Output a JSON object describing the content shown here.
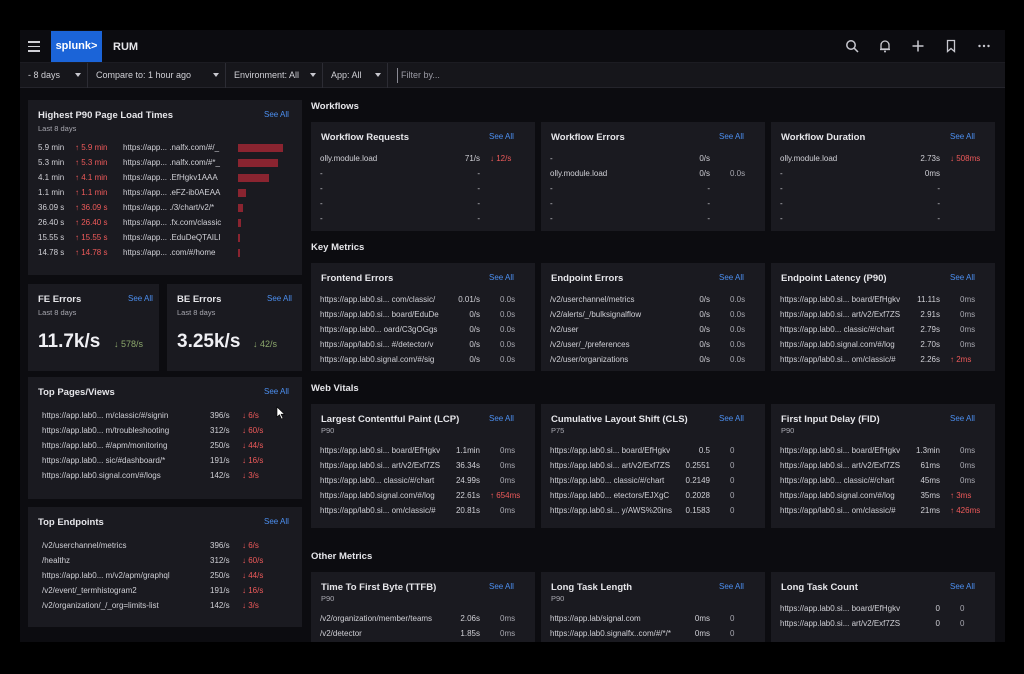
{
  "app": {
    "logo": "splunk>",
    "title": "RUM"
  },
  "toolbar_icons": [
    "search-icon",
    "bell-icon",
    "plus-icon",
    "bookmark-icon",
    "more-icon"
  ],
  "filters": {
    "time": "- 8 days",
    "compare": "Compare to: 1 hour ago",
    "environment": "Environment: All",
    "app": "App: All",
    "filter_placeholder": "Filter by..."
  },
  "see_all": "See All",
  "p90": {
    "title": "Highest P90 Page Load Times",
    "subtitle": "Last 8 days",
    "bar_max": 5.9,
    "rows": [
      {
        "value": "5.9 min",
        "delta": "5.9 min",
        "url": "https://app... .nalfx.com/#/_",
        "bar": 5.9
      },
      {
        "value": "5.3 min",
        "delta": "5.3 min",
        "url": "https://app... .nalfx.com/#*_",
        "bar": 5.3
      },
      {
        "value": "4.1 min",
        "delta": "4.1 min",
        "url": "https://app... .EfHgkv1AAA",
        "bar": 4.1
      },
      {
        "value": "1.1 min",
        "delta": "1.1 min",
        "url": "https://app... .eFZ-ib0AEAA",
        "bar": 1.1
      },
      {
        "value": "36.09 s",
        "delta": "36.09 s",
        "url": "https://app... ./3/chart/v2/*",
        "bar": 0.6
      },
      {
        "value": "26.40 s",
        "delta": "26.40 s",
        "url": "https://app... .fx.com/classic",
        "bar": 0.44
      },
      {
        "value": "15.55 s",
        "delta": "15.55 s",
        "url": "https://app... .EduDeQTAILI",
        "bar": 0.26
      },
      {
        "value": "14.78 s",
        "delta": "14.78 s",
        "url": "https://app... .com/#/home",
        "bar": 0.25
      }
    ]
  },
  "fe_errors": {
    "title": "FE Errors",
    "subtitle": "Last 8 days",
    "value": "11.7k/s",
    "delta": "578/s"
  },
  "be_errors": {
    "title": "BE Errors",
    "subtitle": "Last 8 days",
    "value": "3.25k/s",
    "delta": "42/s"
  },
  "top_pages": {
    "title": "Top Pages/Views",
    "rows": [
      {
        "url": "https://app.lab0... m/classic/#/signin",
        "rate": "396/s",
        "delta": "6/s"
      },
      {
        "url": "https://app.lab0... m/troubleshooting",
        "rate": "312/s",
        "delta": "60/s"
      },
      {
        "url": "https://app.lab0... #/apm/monitoring",
        "rate": "250/s",
        "delta": "44/s"
      },
      {
        "url": "https://app.lab0... sic/#dashboard/*",
        "rate": "191/s",
        "delta": "16/s"
      },
      {
        "url": "https://app.lab0.signal.com/#/logs",
        "rate": "142/s",
        "delta": "3/s"
      }
    ]
  },
  "top_endpoints": {
    "title": "Top Endpoints",
    "rows": [
      {
        "url": "/v2/userchannel/metrics",
        "rate": "396/s",
        "delta": "6/s"
      },
      {
        "url": "/healthz",
        "rate": "312/s",
        "delta": "60/s"
      },
      {
        "url": "https://app.lab0... m/v2/apm/graphql",
        "rate": "250/s",
        "delta": "44/s"
      },
      {
        "url": "/v2/event/_termhistogram2",
        "rate": "191/s",
        "delta": "16/s"
      },
      {
        "url": "/v2/organization/_/_org=limits-list",
        "rate": "142/s",
        "delta": "3/s"
      }
    ]
  },
  "sections": {
    "workflows": "Workflows",
    "key_metrics": "Key Metrics",
    "web_vitals": "Web Vitals",
    "other_metrics": "Other Metrics"
  },
  "workflow_requests": {
    "title": "Workflow Requests",
    "rows": [
      {
        "name": "olly.module.load",
        "value": "71/s",
        "delta": "12/s",
        "delta_dir": "down"
      },
      {
        "name": "-",
        "value": "-",
        "delta": "",
        "delta_dir": ""
      },
      {
        "name": "-",
        "value": "-",
        "delta": "",
        "delta_dir": ""
      },
      {
        "name": "-",
        "value": "-",
        "delta": "",
        "delta_dir": ""
      },
      {
        "name": "-",
        "value": "-",
        "delta": "",
        "delta_dir": ""
      }
    ]
  },
  "workflow_errors": {
    "title": "Workflow Errors",
    "rows": [
      {
        "name": "-",
        "value": "0/s",
        "delta": "",
        "delta_dir": ""
      },
      {
        "name": "olly.module.load",
        "value": "0/s",
        "delta": "0.0s",
        "delta_dir": ""
      },
      {
        "name": "-",
        "value": "-",
        "delta": "",
        "delta_dir": ""
      },
      {
        "name": "-",
        "value": "-",
        "delta": "",
        "delta_dir": ""
      },
      {
        "name": "-",
        "value": "-",
        "delta": "",
        "delta_dir": ""
      }
    ]
  },
  "workflow_duration": {
    "title": "Workflow Duration",
    "rows": [
      {
        "name": "olly.module.load",
        "value": "2.73s",
        "delta": "508ms",
        "delta_dir": "down"
      },
      {
        "name": "-",
        "value": "0ms",
        "delta": "",
        "delta_dir": ""
      },
      {
        "name": "-",
        "value": "-",
        "delta": "",
        "delta_dir": ""
      },
      {
        "name": "-",
        "value": "-",
        "delta": "",
        "delta_dir": ""
      },
      {
        "name": "-",
        "value": "-",
        "delta": "",
        "delta_dir": ""
      }
    ]
  },
  "frontend_errors": {
    "title": "Frontend Errors",
    "rows": [
      {
        "name": "https://app.lab0.si... com/classic/",
        "value": "0.01/s",
        "delta": "0.0s",
        "delta_dir": ""
      },
      {
        "name": "https://app.lab0.si... board/EduDe",
        "value": "0/s",
        "delta": "0.0s",
        "delta_dir": ""
      },
      {
        "name": "https://app.lab0... oard/C3gOGgs",
        "value": "0/s",
        "delta": "0.0s",
        "delta_dir": ""
      },
      {
        "name": "https://app/lab0.si... #/detector/v",
        "value": "0/s",
        "delta": "0.0s",
        "delta_dir": ""
      },
      {
        "name": "https://app.lab0.signal.com/#/sig",
        "value": "0/s",
        "delta": "0.0s",
        "delta_dir": ""
      }
    ]
  },
  "endpoint_errors": {
    "title": "Endpoint Errors",
    "rows": [
      {
        "name": "/v2/userchannel/metrics",
        "value": "0/s",
        "delta": "0.0s",
        "delta_dir": ""
      },
      {
        "name": "/v2/alerts/_/bulksignalflow",
        "value": "0/s",
        "delta": "0.0s",
        "delta_dir": ""
      },
      {
        "name": "/v2/user",
        "value": "0/s",
        "delta": "0.0s",
        "delta_dir": ""
      },
      {
        "name": "/v2/user/_/preferences",
        "value": "0/s",
        "delta": "0.0s",
        "delta_dir": ""
      },
      {
        "name": "/v2/user/organizations",
        "value": "0/s",
        "delta": "0.0s",
        "delta_dir": ""
      }
    ]
  },
  "endpoint_latency": {
    "title": "Endpoint Latency (P90)",
    "rows": [
      {
        "name": "https://app.lab0.si... board/EfHgkv",
        "value": "11.11s",
        "delta": "0ms",
        "delta_dir": ""
      },
      {
        "name": "https://app.lab0.si... art/v2/Exf7ZS",
        "value": "2.91s",
        "delta": "0ms",
        "delta_dir": ""
      },
      {
        "name": "https://app.lab0... classic/#/chart",
        "value": "2.79s",
        "delta": "0ms",
        "delta_dir": ""
      },
      {
        "name": "https://app.lab0.signal.com/#/log",
        "value": "2.70s",
        "delta": "0ms",
        "delta_dir": ""
      },
      {
        "name": "https://app/lab0.si... om/classic/#",
        "value": "2.26s",
        "delta": "2ms",
        "delta_dir": "up"
      }
    ]
  },
  "lcp": {
    "title": "Largest Contentful Paint (LCP)",
    "subtitle": "P90",
    "rows": [
      {
        "name": "https://app.lab0.si... board/EfHgkv",
        "value": "1.1min",
        "delta": "0ms",
        "delta_dir": ""
      },
      {
        "name": "https://app.lab0.si... art/v2/Exf7ZS",
        "value": "36.34s",
        "delta": "0ms",
        "delta_dir": ""
      },
      {
        "name": "https://app.lab0... classic/#/chart",
        "value": "24.99s",
        "delta": "0ms",
        "delta_dir": ""
      },
      {
        "name": "https://app.lab0.signal.com/#/log",
        "value": "22.61s",
        "delta": "654ms",
        "delta_dir": "up"
      },
      {
        "name": "https://app/lab0.si... om/classic/#",
        "value": "20.81s",
        "delta": "0ms",
        "delta_dir": ""
      }
    ]
  },
  "cls": {
    "title": "Cumulative Layout Shift (CLS)",
    "subtitle": "P75",
    "rows": [
      {
        "name": "https://app.lab0.si... board/EfHgkv",
        "value": "0.5",
        "delta": "0",
        "delta_dir": ""
      },
      {
        "name": "https://app.lab0.si... art/v2/Exf7ZS",
        "value": "0.2551",
        "delta": "0",
        "delta_dir": ""
      },
      {
        "name": "https://app.lab0... classic/#/chart",
        "value": "0.2149",
        "delta": "0",
        "delta_dir": ""
      },
      {
        "name": "https://app.lab0... etectors/EJXgC",
        "value": "0.2028",
        "delta": "0",
        "delta_dir": ""
      },
      {
        "name": "https://app.lab0.si... y/AWS%20ins",
        "value": "0.1583",
        "delta": "0",
        "delta_dir": ""
      }
    ]
  },
  "fid": {
    "title": "First Input Delay (FID)",
    "subtitle": "P90",
    "rows": [
      {
        "name": "https://app.lab0.si... board/EfHgkv",
        "value": "1.3min",
        "delta": "0ms",
        "delta_dir": ""
      },
      {
        "name": "https://app.lab0.si... art/v2/Exf7ZS",
        "value": "61ms",
        "delta": "0ms",
        "delta_dir": ""
      },
      {
        "name": "https://app.lab0... classic/#/chart",
        "value": "45ms",
        "delta": "0ms",
        "delta_dir": ""
      },
      {
        "name": "https://app.lab0.signal.com/#/log",
        "value": "35ms",
        "delta": "3ms",
        "delta_dir": "up"
      },
      {
        "name": "https://app/lab0.si... om/classic/#",
        "value": "21ms",
        "delta": "426ms",
        "delta_dir": "up"
      }
    ]
  },
  "ttfb": {
    "title": "Time To First Byte (TTFB)",
    "subtitle": "P90",
    "rows": [
      {
        "name": "/v2/organization/member/teams",
        "value": "2.06s",
        "delta": "0ms",
        "delta_dir": ""
      },
      {
        "name": "/v2/detector",
        "value": "1.85s",
        "delta": "0ms",
        "delta_dir": ""
      }
    ]
  },
  "long_task_length": {
    "title": "Long Task Length",
    "subtitle": "P90",
    "rows": [
      {
        "name": "https://app.lab/signal.com",
        "value": "0ms",
        "delta": "0",
        "delta_dir": ""
      },
      {
        "name": "https://app.lab0.signalfx..com/#/*/*",
        "value": "0ms",
        "delta": "0",
        "delta_dir": ""
      }
    ]
  },
  "long_task_count": {
    "title": "Long Task Count",
    "subtitle": "",
    "rows": [
      {
        "name": "https://app.lab0.si... board/EfHgkv",
        "value": "0",
        "delta": "0",
        "delta_dir": ""
      },
      {
        "name": "https://app.lab0.si... art/v2/Exf7ZS",
        "value": "0",
        "delta": "0",
        "delta_dir": ""
      }
    ]
  },
  "colors": {
    "accent": "#1b64d8",
    "link": "#4c8ff0",
    "bad": "#ee5a5a",
    "good": "#8ca86c",
    "bar": "#8a2430"
  }
}
